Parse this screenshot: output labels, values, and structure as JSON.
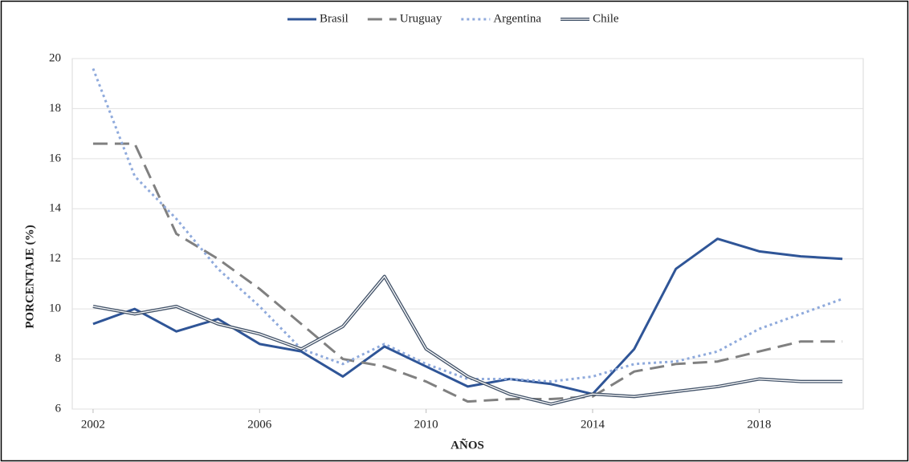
{
  "chart_data": {
    "type": "line",
    "x_label": "AÑOS",
    "y_label": "PORCENTAJE (%)",
    "x": [
      2002,
      2003,
      2004,
      2005,
      2006,
      2007,
      2008,
      2009,
      2010,
      2011,
      2012,
      2013,
      2014,
      2015,
      2016,
      2017,
      2018,
      2019,
      2020
    ],
    "series": [
      {
        "name": "Brasil",
        "color": "#2f5597",
        "style": "solid",
        "values": [
          9.4,
          10.0,
          9.1,
          9.6,
          8.6,
          8.3,
          7.3,
          8.5,
          7.7,
          6.9,
          7.2,
          7.0,
          6.6,
          8.4,
          11.6,
          12.8,
          12.3,
          12.1,
          12.0
        ]
      },
      {
        "name": "Uruguay",
        "color": "#808080",
        "style": "dashed",
        "values": [
          16.6,
          16.6,
          13.0,
          12.0,
          10.8,
          9.4,
          8.0,
          7.7,
          7.1,
          6.3,
          6.4,
          6.4,
          6.5,
          7.5,
          7.8,
          7.9,
          8.3,
          8.7,
          8.7
        ]
      },
      {
        "name": "Argentina",
        "color": "#8faadc",
        "style": "dotted",
        "values": [
          19.6,
          15.3,
          13.6,
          11.6,
          10.1,
          8.4,
          7.8,
          8.6,
          7.8,
          7.2,
          7.2,
          7.1,
          7.3,
          7.8,
          7.9,
          8.3,
          9.2,
          9.8,
          10.4
        ]
      },
      {
        "name": "Chile",
        "color": "#44546a",
        "style": "double",
        "values": [
          10.1,
          9.8,
          10.1,
          9.4,
          9.0,
          8.4,
          9.3,
          11.3,
          8.4,
          7.3,
          6.6,
          6.2,
          6.6,
          6.5,
          6.7,
          6.9,
          7.2,
          7.1,
          7.1
        ]
      }
    ],
    "xlim": [
      2001.5,
      2020.5
    ],
    "xticks": [
      2002,
      2006,
      2010,
      2014,
      2018
    ],
    "ylim": [
      6,
      20
    ],
    "yticks": [
      6,
      8,
      10,
      12,
      14,
      16,
      18,
      20
    ],
    "grid": true,
    "legend": "top"
  }
}
